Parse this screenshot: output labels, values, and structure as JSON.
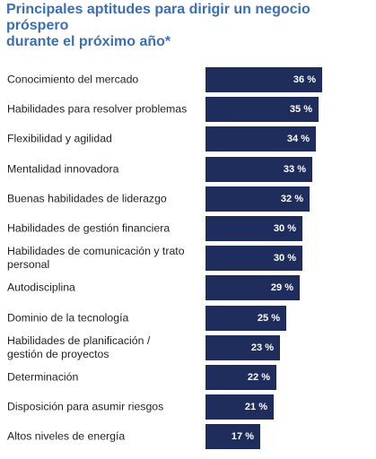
{
  "chart_data": {
    "type": "bar",
    "orientation": "horizontal",
    "title": "Principales aptitudes para dirigir un negocio próspero durante el próximo año*",
    "categories": [
      "Conocimiento del mercado",
      "Habilidades para resolver problemas",
      "Flexibilidad y agilidad",
      "Mentalidad innovadora",
      "Buenas habilidades de liderazgo",
      "Habilidades de gestión financiera",
      "Habilidades de comunicación y trato personal",
      "Autodisciplina",
      "Dominio de la tecnología",
      "Habilidades de planificación / gestión de proyectos",
      "Determinación",
      "Disposición para asumir riesgos",
      "Altos niveles de energía"
    ],
    "values": [
      36,
      35,
      34,
      33,
      32,
      30,
      30,
      29,
      25,
      23,
      22,
      21,
      17
    ],
    "value_labels": [
      "36 %",
      "35 %",
      "34 %",
      "33 %",
      "32 %",
      "30 %",
      "30 %",
      "29 %",
      "25 %",
      "23 %",
      "22 %",
      "21 %",
      "17 %"
    ],
    "unit": "%",
    "bar_color": "#1f2d5c",
    "title_color": "#3b6eb5"
  }
}
